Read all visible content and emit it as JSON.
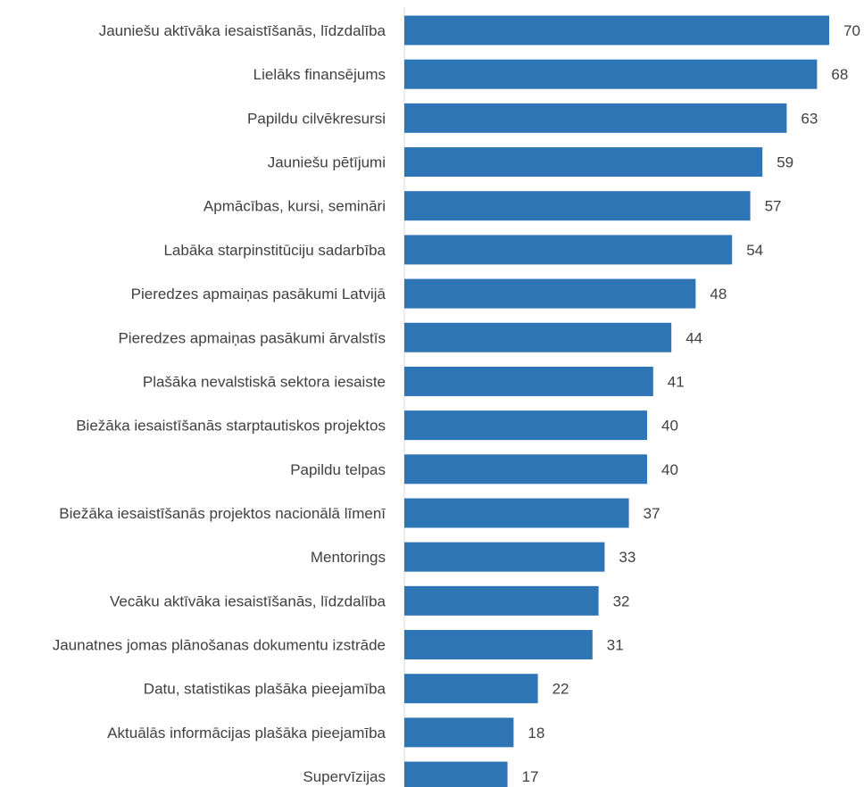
{
  "chart_data": {
    "type": "bar",
    "orientation": "horizontal",
    "categories": [
      "Jauniešu aktīvāka iesaistīšanās, līdzdalība",
      "Lielāks finansējums",
      "Papildu cilvēkresursi",
      "Jauniešu pētījumi",
      "Apmācības, kursi, semināri",
      "Labāka starpinstitūciju sadarbība",
      "Pieredzes apmaiņas pasākumi Latvijā",
      "Pieredzes apmaiņas pasākumi ārvalstīs",
      "Plašāka nevalstiskā sektora iesaiste",
      "Biežāka iesaistīšanās starptautiskos projektos",
      "Papildu telpas",
      "Biežāka iesaistīšanās projektos nacionālā līmenī",
      "Mentorings",
      "Vecāku aktīvāka iesaistīšanās, līdzdalība",
      "Jaunatnes jomas plānošanas dokumentu izstrāde",
      "Datu, statistikas plašāka pieejamība",
      "Aktuālās informācijas plašāka pieejamība",
      "Supervīzijas"
    ],
    "values": [
      70,
      68,
      63,
      59,
      57,
      54,
      48,
      44,
      41,
      40,
      40,
      37,
      33,
      32,
      31,
      22,
      18,
      17
    ],
    "title": "",
    "xlabel": "",
    "ylabel": "",
    "xlim": [
      0,
      70
    ],
    "grid": false,
    "legend": "none",
    "bar_color": "#2e75b6",
    "data_labels": true
  }
}
